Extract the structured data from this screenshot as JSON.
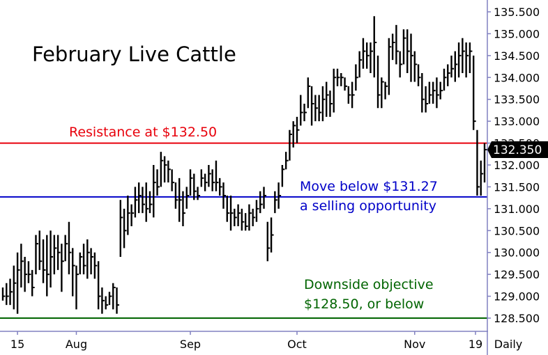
{
  "chart_data": {
    "type": "bar",
    "subtype": "ohlc-daily",
    "title": "February Live Cattle",
    "ylim": [
      128.3,
      135.6
    ],
    "y_ticks": [
      "135.500",
      "135.000",
      "134.500",
      "134.000",
      "133.500",
      "133.000",
      "132.500",
      "132.000",
      "131.500",
      "131.000",
      "130.500",
      "130.000",
      "129.500",
      "129.000",
      "128.500"
    ],
    "x_ticks": [
      "15",
      "Aug",
      "Sep",
      "Oct",
      "Nov",
      "19",
      "Daily"
    ],
    "last_price": 132.35,
    "last_price_label": "132.350",
    "grid": false,
    "colors": {
      "resistance": "#e8000b",
      "trigger": "#0000c8",
      "objective": "#006400",
      "bars": "#000000",
      "price_tag": "#000000",
      "axis": "#8080c0"
    },
    "levels": [
      {
        "name": "resistance",
        "value": 132.5,
        "label": "Resistance at $132.50"
      },
      {
        "name": "trigger",
        "value": 131.27,
        "label_line1": "Move below $131.27",
        "label_line2": "a selling opportunity"
      },
      {
        "name": "objective",
        "value": 128.5,
        "label_line1": "Downside objective",
        "label_line2": "$128.50, or below"
      }
    ],
    "bars": [
      {
        "x": "Jul 10",
        "high": 129.2,
        "low": 128.9,
        "close": 129.0
      },
      {
        "x": "Jul 11",
        "high": 129.3,
        "low": 128.8,
        "close": 129.0
      },
      {
        "x": "Jul 12",
        "high": 129.4,
        "low": 128.8,
        "close": 129.1
      },
      {
        "x": "Jul 13",
        "high": 129.7,
        "low": 128.7,
        "close": 129.3
      },
      {
        "x": "Jul 14",
        "high": 130.0,
        "low": 128.6,
        "close": 129.6
      },
      {
        "x": "Jul 15",
        "high": 130.2,
        "low": 129.2,
        "close": 129.8
      },
      {
        "x": "Jul 16",
        "high": 129.9,
        "low": 129.1,
        "close": 129.5
      },
      {
        "x": "Jul 17",
        "high": 129.8,
        "low": 129.3,
        "close": 129.5
      },
      {
        "x": "Jul 18",
        "high": 129.6,
        "low": 129.0,
        "close": 129.2
      },
      {
        "x": "Jul 21",
        "high": 130.4,
        "low": 129.5,
        "close": 130.2
      },
      {
        "x": "Jul 22",
        "high": 130.5,
        "low": 129.6,
        "close": 129.8
      },
      {
        "x": "Jul 23",
        "high": 130.3,
        "low": 129.3,
        "close": 129.6
      },
      {
        "x": "Jul 24",
        "high": 130.4,
        "low": 129.0,
        "close": 129.5
      },
      {
        "x": "Jul 25",
        "high": 130.5,
        "low": 129.2,
        "close": 129.9
      },
      {
        "x": "Jul 26",
        "high": 130.4,
        "low": 129.5,
        "close": 130.1
      },
      {
        "x": "Jul 27",
        "high": 130.4,
        "low": 129.6,
        "close": 130.0
      },
      {
        "x": "Jul 28",
        "high": 130.2,
        "low": 129.1,
        "close": 129.8
      },
      {
        "x": "Jul 29",
        "high": 130.4,
        "low": 129.8,
        "close": 130.2
      },
      {
        "x": "Jul 30",
        "high": 130.7,
        "low": 129.5,
        "close": 130.0
      },
      {
        "x": "Jul 31",
        "high": 130.1,
        "low": 129.0,
        "close": 129.7
      },
      {
        "x": "Aug 1",
        "high": 129.7,
        "low": 128.7,
        "close": 129.5
      },
      {
        "x": "Aug 2",
        "high": 130.0,
        "low": 129.5,
        "close": 129.9
      },
      {
        "x": "Aug 3",
        "high": 130.2,
        "low": 129.5,
        "close": 129.7
      },
      {
        "x": "Aug 4",
        "high": 130.3,
        "low": 129.4,
        "close": 130.0
      },
      {
        "x": "Aug 5",
        "high": 130.1,
        "low": 129.5,
        "close": 129.9
      },
      {
        "x": "Aug 6",
        "high": 130.0,
        "low": 129.4,
        "close": 129.7
      },
      {
        "x": "Aug 7",
        "high": 129.8,
        "low": 128.7,
        "close": 129.0
      },
      {
        "x": "Aug 8",
        "high": 129.2,
        "low": 128.6,
        "close": 128.9
      },
      {
        "x": "Aug 9",
        "high": 129.0,
        "low": 128.7,
        "close": 128.8
      },
      {
        "x": "Aug 10",
        "high": 129.1,
        "low": 128.8,
        "close": 129.0
      },
      {
        "x": "Aug 11",
        "high": 129.3,
        "low": 128.7,
        "close": 129.2
      },
      {
        "x": "Aug 12",
        "high": 129.2,
        "low": 128.6,
        "close": 128.8
      },
      {
        "x": "Aug 13",
        "high": 131.2,
        "low": 129.9,
        "close": 130.8
      },
      {
        "x": "Aug 14",
        "high": 131.0,
        "low": 130.1,
        "close": 130.5
      },
      {
        "x": "Aug 15",
        "high": 131.3,
        "low": 130.4,
        "close": 130.9
      },
      {
        "x": "Aug 16",
        "high": 131.1,
        "low": 130.6,
        "close": 130.9
      },
      {
        "x": "Aug 17",
        "high": 131.5,
        "low": 130.8,
        "close": 131.2
      },
      {
        "x": "Aug 18",
        "high": 131.6,
        "low": 130.9,
        "close": 131.3
      },
      {
        "x": "Aug 19",
        "high": 131.5,
        "low": 130.9,
        "close": 131.1
      },
      {
        "x": "Aug 20",
        "high": 131.6,
        "low": 130.7,
        "close": 131.0
      },
      {
        "x": "Aug 21",
        "high": 131.4,
        "low": 130.9,
        "close": 131.1
      },
      {
        "x": "Aug 22",
        "high": 132.0,
        "low": 130.8,
        "close": 131.6
      },
      {
        "x": "Aug 23",
        "high": 131.9,
        "low": 131.3,
        "close": 131.5
      },
      {
        "x": "Aug 24",
        "high": 132.3,
        "low": 131.5,
        "close": 132.1
      },
      {
        "x": "Aug 25",
        "high": 132.2,
        "low": 131.6,
        "close": 132.0
      },
      {
        "x": "Aug 26",
        "high": 132.1,
        "low": 131.6,
        "close": 131.9
      },
      {
        "x": "Aug 27",
        "high": 131.9,
        "low": 131.4,
        "close": 131.6
      },
      {
        "x": "Aug 28",
        "high": 131.6,
        "low": 131.0,
        "close": 131.2
      },
      {
        "x": "Aug 29",
        "high": 131.7,
        "low": 130.7,
        "close": 131.2
      },
      {
        "x": "Aug 30",
        "high": 131.4,
        "low": 130.6,
        "close": 130.9
      },
      {
        "x": "Aug 31",
        "high": 131.5,
        "low": 131.0,
        "close": 131.3
      },
      {
        "x": "Sep 1",
        "high": 131.9,
        "low": 131.3,
        "close": 131.7
      },
      {
        "x": "Sep 2",
        "high": 131.8,
        "low": 131.2,
        "close": 131.4
      },
      {
        "x": "Sep 3",
        "high": 131.5,
        "low": 131.2,
        "close": 131.3
      },
      {
        "x": "Sep 4",
        "high": 131.9,
        "low": 131.5,
        "close": 131.7
      },
      {
        "x": "Sep 5",
        "high": 131.8,
        "low": 131.4,
        "close": 131.6
      },
      {
        "x": "Sep 6",
        "high": 132.0,
        "low": 131.5,
        "close": 131.8
      },
      {
        "x": "Sep 7",
        "high": 131.9,
        "low": 131.4,
        "close": 131.6
      },
      {
        "x": "Sep 8",
        "high": 132.1,
        "low": 131.4,
        "close": 131.6
      },
      {
        "x": "Sep 9",
        "high": 131.7,
        "low": 131.3,
        "close": 131.5
      },
      {
        "x": "Sep 10",
        "high": 131.6,
        "low": 131.0,
        "close": 131.3
      },
      {
        "x": "Sep 11",
        "high": 131.3,
        "low": 130.7,
        "close": 130.9
      },
      {
        "x": "Sep 12",
        "high": 131.3,
        "low": 130.5,
        "close": 130.9
      },
      {
        "x": "Sep 13",
        "high": 131.0,
        "low": 130.6,
        "close": 130.8
      },
      {
        "x": "Sep 14",
        "high": 131.1,
        "low": 130.6,
        "close": 130.9
      },
      {
        "x": "Sep 15",
        "high": 131.0,
        "low": 130.5,
        "close": 130.7
      },
      {
        "x": "Sep 16",
        "high": 130.9,
        "low": 130.5,
        "close": 130.6
      },
      {
        "x": "Sep 17",
        "high": 131.1,
        "low": 130.5,
        "close": 130.9
      },
      {
        "x": "Sep 18",
        "high": 131.0,
        "low": 130.6,
        "close": 130.8
      },
      {
        "x": "Sep 19",
        "high": 131.2,
        "low": 130.7,
        "close": 131.0
      },
      {
        "x": "Sep 20",
        "high": 131.4,
        "low": 130.9,
        "close": 131.1
      },
      {
        "x": "Sep 21",
        "high": 131.5,
        "low": 131.0,
        "close": 131.3
      },
      {
        "x": "Sep 22",
        "high": 130.7,
        "low": 129.8,
        "close": 130.1
      },
      {
        "x": "Sep 23",
        "high": 130.8,
        "low": 130.0,
        "close": 130.4
      },
      {
        "x": "Sep 24",
        "high": 131.4,
        "low": 130.9,
        "close": 131.2
      },
      {
        "x": "Sep 25",
        "high": 131.6,
        "low": 131.0,
        "close": 131.3
      },
      {
        "x": "Sep 26",
        "high": 132.0,
        "low": 131.5,
        "close": 131.9
      },
      {
        "x": "Sep 27",
        "high": 132.3,
        "low": 131.9,
        "close": 132.1
      },
      {
        "x": "Sep 28",
        "high": 132.8,
        "low": 132.1,
        "close": 132.7
      },
      {
        "x": "Sep 29",
        "high": 133.0,
        "low": 132.4,
        "close": 132.9
      },
      {
        "x": "Sep 30",
        "high": 133.1,
        "low": 132.5,
        "close": 132.8
      },
      {
        "x": "Oct 1",
        "high": 133.6,
        "low": 132.9,
        "close": 133.2
      },
      {
        "x": "Oct 2",
        "high": 133.4,
        "low": 133.0,
        "close": 133.2
      },
      {
        "x": "Oct 3",
        "high": 134.0,
        "low": 133.3,
        "close": 133.8
      },
      {
        "x": "Oct 4",
        "high": 133.8,
        "low": 132.9,
        "close": 133.4
      },
      {
        "x": "Oct 5",
        "high": 133.6,
        "low": 133.0,
        "close": 133.3
      },
      {
        "x": "Oct 6",
        "high": 133.6,
        "low": 133.0,
        "close": 133.2
      },
      {
        "x": "Oct 7",
        "high": 133.8,
        "low": 133.0,
        "close": 133.5
      },
      {
        "x": "Oct 8",
        "high": 133.9,
        "low": 133.1,
        "close": 133.6
      },
      {
        "x": "Oct 9",
        "high": 133.7,
        "low": 133.1,
        "close": 133.4
      },
      {
        "x": "Oct 10",
        "high": 134.2,
        "low": 133.2,
        "close": 134.0
      },
      {
        "x": "Oct 11",
        "high": 134.2,
        "low": 133.8,
        "close": 134.0
      },
      {
        "x": "Oct 12",
        "high": 134.1,
        "low": 133.8,
        "close": 134.0
      },
      {
        "x": "Oct 13",
        "high": 134.0,
        "low": 133.7,
        "close": 133.8
      },
      {
        "x": "Oct 14",
        "high": 133.8,
        "low": 133.4,
        "close": 133.6
      },
      {
        "x": "Oct 15",
        "high": 133.9,
        "low": 133.3,
        "close": 133.6
      },
      {
        "x": "Oct 16",
        "high": 134.3,
        "low": 133.7,
        "close": 134.0
      },
      {
        "x": "Oct 17",
        "high": 134.6,
        "low": 134.0,
        "close": 134.4
      },
      {
        "x": "Oct 18",
        "high": 134.9,
        "low": 134.2,
        "close": 134.6
      },
      {
        "x": "Oct 19",
        "high": 134.8,
        "low": 134.2,
        "close": 134.5
      },
      {
        "x": "Oct 20",
        "high": 134.8,
        "low": 134.1,
        "close": 134.6
      },
      {
        "x": "Oct 21",
        "high": 135.4,
        "low": 134.0,
        "close": 134.8
      },
      {
        "x": "Oct 22",
        "high": 134.5,
        "low": 133.3,
        "close": 133.6
      },
      {
        "x": "Oct 23",
        "high": 134.0,
        "low": 133.3,
        "close": 133.9
      },
      {
        "x": "Oct 24",
        "high": 133.9,
        "low": 133.5,
        "close": 133.8
      },
      {
        "x": "Oct 25",
        "high": 134.9,
        "low": 133.6,
        "close": 134.7
      },
      {
        "x": "Oct 26",
        "high": 135.0,
        "low": 134.4,
        "close": 134.8
      },
      {
        "x": "Oct 27",
        "high": 135.2,
        "low": 134.3,
        "close": 134.6
      },
      {
        "x": "Oct 28",
        "high": 134.6,
        "low": 134.0,
        "close": 134.3
      },
      {
        "x": "Oct 29",
        "high": 135.1,
        "low": 134.3,
        "close": 134.9
      },
      {
        "x": "Oct 30",
        "high": 135.1,
        "low": 134.1,
        "close": 134.6
      },
      {
        "x": "Oct 31",
        "high": 135.0,
        "low": 133.9,
        "close": 134.5
      },
      {
        "x": "Nov 1",
        "high": 134.6,
        "low": 133.9,
        "close": 134.3
      },
      {
        "x": "Nov 2",
        "high": 134.3,
        "low": 133.8,
        "close": 134.0
      },
      {
        "x": "Nov 3",
        "high": 134.1,
        "low": 133.2,
        "close": 133.5
      },
      {
        "x": "Nov 4",
        "high": 133.8,
        "low": 133.2,
        "close": 133.4
      },
      {
        "x": "Nov 5",
        "high": 133.9,
        "low": 133.4,
        "close": 133.6
      },
      {
        "x": "Nov 6",
        "high": 133.9,
        "low": 133.4,
        "close": 133.7
      },
      {
        "x": "Nov 7",
        "high": 134.0,
        "low": 133.3,
        "close": 133.6
      },
      {
        "x": "Nov 8",
        "high": 133.9,
        "low": 133.5,
        "close": 133.7
      },
      {
        "x": "Nov 9",
        "high": 134.2,
        "low": 133.7,
        "close": 134.0
      },
      {
        "x": "Nov 10",
        "high": 134.3,
        "low": 133.8,
        "close": 134.1
      },
      {
        "x": "Nov 11",
        "high": 134.5,
        "low": 134.0,
        "close": 134.2
      },
      {
        "x": "Nov 12",
        "high": 134.6,
        "low": 133.9,
        "close": 134.3
      },
      {
        "x": "Nov 13",
        "high": 134.8,
        "low": 134.0,
        "close": 134.5
      },
      {
        "x": "Nov 14",
        "high": 134.9,
        "low": 134.1,
        "close": 134.6
      },
      {
        "x": "Nov 15",
        "high": 134.8,
        "low": 134.0,
        "close": 134.5
      },
      {
        "x": "Nov 16",
        "high": 134.8,
        "low": 134.1,
        "close": 134.6
      },
      {
        "x": "Nov 17",
        "high": 134.5,
        "low": 132.8,
        "close": 133.0
      },
      {
        "x": "Nov 18",
        "high": 132.8,
        "low": 131.3,
        "close": 131.5
      },
      {
        "x": "Nov 19",
        "high": 132.1,
        "low": 131.3,
        "close": 131.8
      },
      {
        "x": "Nov 20",
        "high": 132.5,
        "low": 131.6,
        "close": 132.35
      }
    ]
  }
}
